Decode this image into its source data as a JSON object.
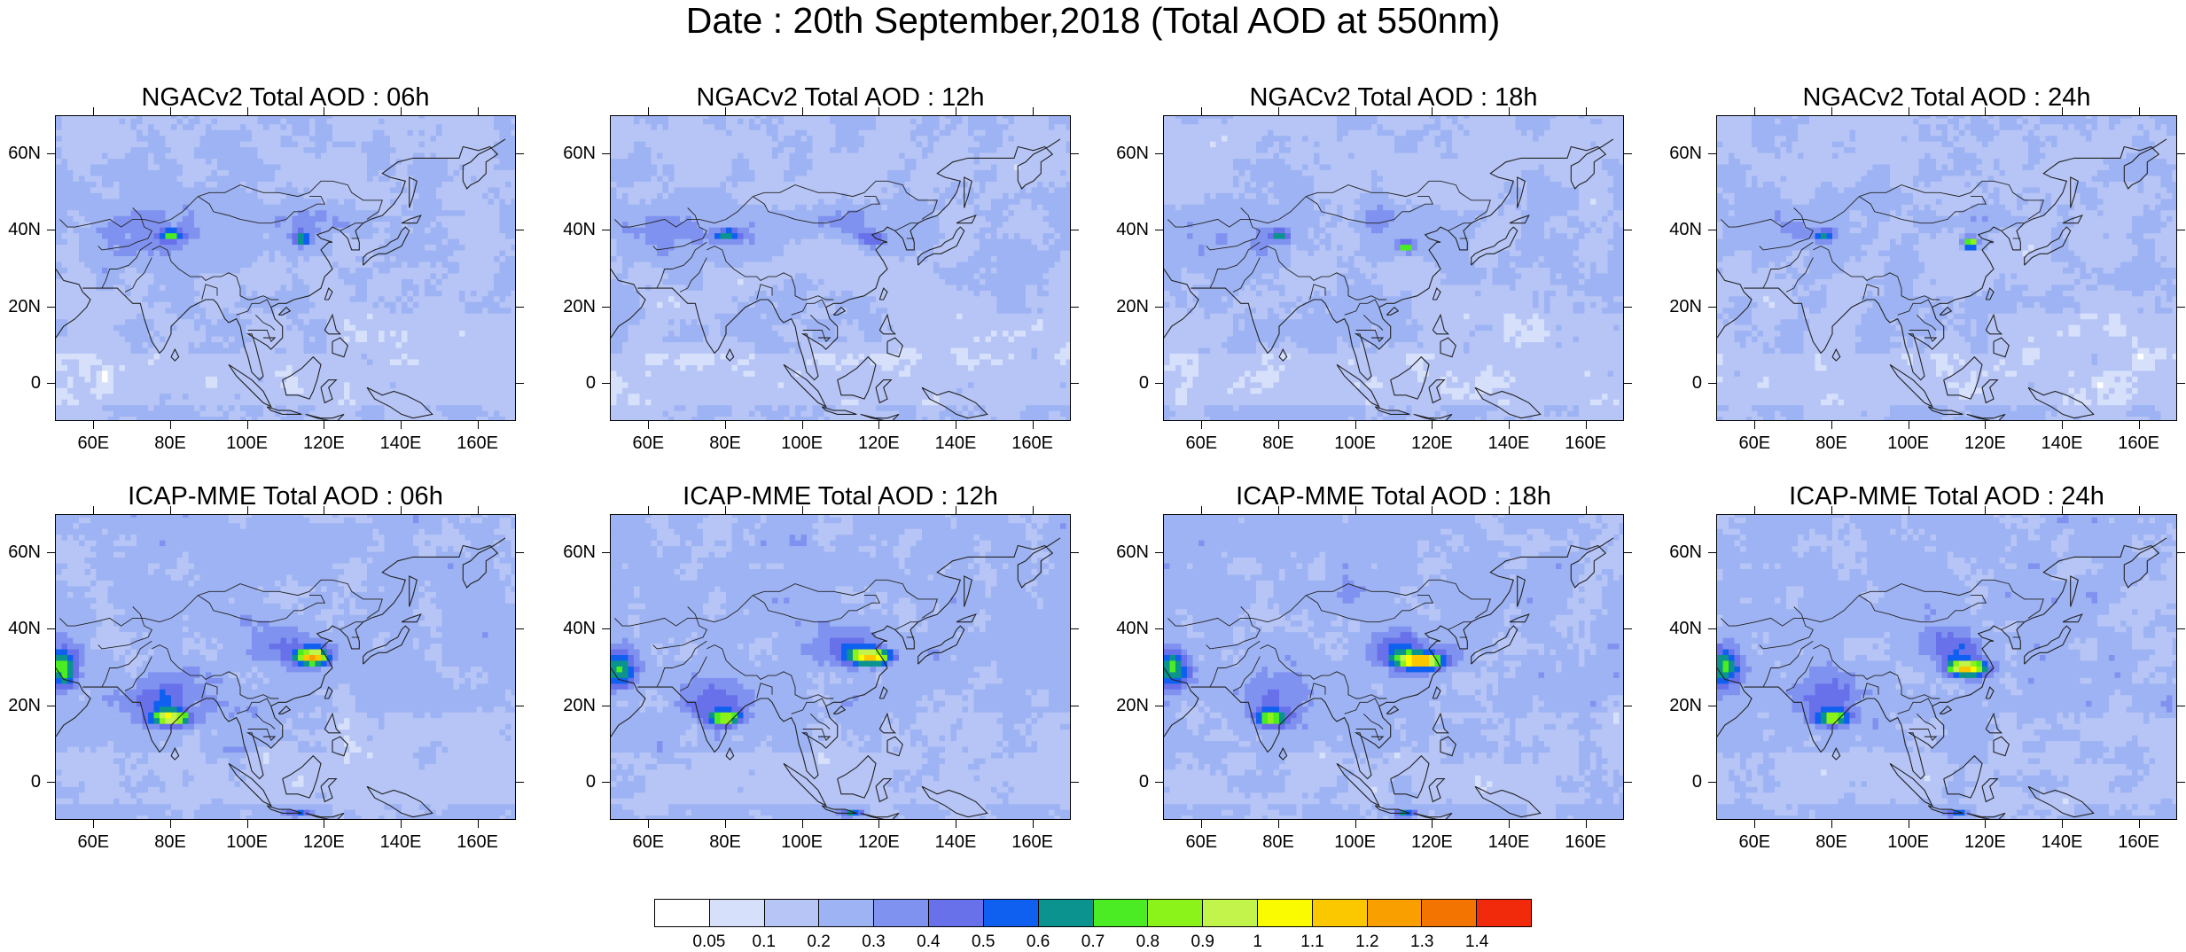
{
  "figure": {
    "title": "Date : 20th September,2018 (Total AOD at 550nm)"
  },
  "panels": [
    {
      "title": "NGACv2 Total AOD : 06h",
      "model": "NGACv2",
      "hour": "06h"
    },
    {
      "title": "NGACv2 Total AOD : 12h",
      "model": "NGACv2",
      "hour": "12h"
    },
    {
      "title": "NGACv2 Total AOD : 18h",
      "model": "NGACv2",
      "hour": "18h"
    },
    {
      "title": "NGACv2 Total AOD : 24h",
      "model": "NGACv2",
      "hour": "24h"
    },
    {
      "title": "ICAP-MME Total AOD : 06h",
      "model": "ICAP-MME",
      "hour": "06h"
    },
    {
      "title": "ICAP-MME Total AOD : 12h",
      "model": "ICAP-MME",
      "hour": "12h"
    },
    {
      "title": "ICAP-MME Total AOD : 18h",
      "model": "ICAP-MME",
      "hour": "18h"
    },
    {
      "title": "ICAP-MME Total AOD : 24h",
      "model": "ICAP-MME",
      "hour": "24h"
    }
  ],
  "axes": {
    "lat_labels": [
      "60N",
      "40N",
      "20N",
      "0"
    ],
    "lat_values": [
      60,
      40,
      20,
      0
    ],
    "lon_labels": [
      "60E",
      "80E",
      "100E",
      "120E",
      "140E",
      "160E"
    ],
    "lon_values": [
      60,
      80,
      100,
      120,
      140,
      160
    ],
    "lon_range": [
      50,
      170
    ],
    "lat_range": [
      -10,
      70
    ]
  },
  "colorbar": {
    "labels": [
      "0.05",
      "0.1",
      "0.2",
      "0.3",
      "0.4",
      "0.5",
      "0.6",
      "0.7",
      "0.8",
      "0.9",
      "1",
      "1.1",
      "1.2",
      "1.3",
      "1.4"
    ],
    "colors": [
      "#ffffff",
      "#d6e0fb",
      "#b7c5f6",
      "#9eb3f3",
      "#8092f0",
      "#6871ea",
      "#0f60f0",
      "#0b938f",
      "#4bec23",
      "#8bf21a",
      "#c3f44b",
      "#fbfb00",
      "#fbc800",
      "#f9a000",
      "#f47400",
      "#f02a0a"
    ]
  }
}
